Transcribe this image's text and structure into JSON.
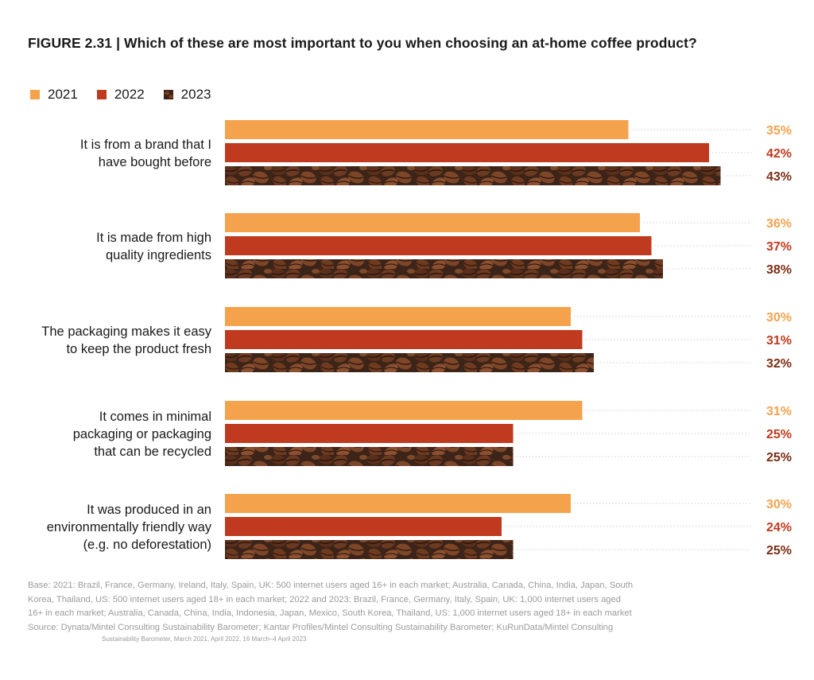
{
  "figure": {
    "title": "FIGURE 2.31 | Which of these are most important to you when choosing an at-home coffee product?"
  },
  "colors": {
    "y2021": "#f5a24c",
    "y2022": "#bf3a1e",
    "y2023_base": "#3d2418",
    "bean": "#6b3a22",
    "bean_dark": "#241109",
    "label_2023": "#7a2e14",
    "grid_dots": "#cfcfcf"
  },
  "legend": [
    {
      "label": "2021",
      "color_key": "y2021",
      "icon": "solid-swatch"
    },
    {
      "label": "2022",
      "color_key": "y2022",
      "icon": "solid-swatch"
    },
    {
      "label": "2023",
      "color_key": "y2023_base",
      "icon": "coffee-bean-swatch"
    }
  ],
  "chart_data": {
    "type": "bar",
    "orientation": "horizontal",
    "title": "Which of these are most important to you when choosing an at-home coffee product?",
    "categories": [
      [
        "It is from a brand that I",
        "have bought before"
      ],
      [
        "It is made from high",
        "quality ingredients"
      ],
      [
        "The packaging makes it easy",
        "to keep the product fresh"
      ],
      [
        "It comes in minimal",
        "packaging or packaging",
        "that can be recycled"
      ],
      [
        "It was produced in an",
        "environmentally friendly way",
        "(e.g. no deforestation)"
      ]
    ],
    "series": [
      {
        "name": "2021",
        "values": [
          35,
          36,
          30,
          31,
          30
        ],
        "labels": [
          "35%",
          "36%",
          "30%",
          "31%",
          "30%"
        ]
      },
      {
        "name": "2022",
        "values": [
          42,
          37,
          31,
          25,
          24
        ],
        "labels": [
          "42%",
          "37%",
          "31%",
          "25%",
          "24%"
        ]
      },
      {
        "name": "2023",
        "values": [
          43,
          38,
          32,
          25,
          25
        ],
        "labels": [
          "43%",
          "38%",
          "32%",
          "25%",
          "25%"
        ]
      }
    ],
    "value_unit": "%",
    "xlim": [
      0,
      50
    ],
    "grid": false,
    "legend_position": "top-left"
  },
  "source": {
    "lines": [
      "Base: 2021: Brazil, France, Germany, Ireland, Italy, Spain, UK: 500 internet users aged 16+ in each market; Australia, Canada, China, India, Japan, South",
      "Korea, Thailand, US: 500 internet users aged 18+ in each market; 2022 and 2023: Brazil, France, Germany, Italy, Spain, UK: 1,000 internet users aged",
      "16+ in each market; Australia, Canada, China, India, Indonesia, Japan, Mexico, South Korea, Thailand, US: 1,000 internet users aged 18+ in each market",
      "Source: Dynata/Mintel Consulting Sustainability Barometer; Kantar Profiles/Mintel Consulting Sustainability Barometer; KuRunData/Mintel Consulting"
    ],
    "tail": "Sustainability Barometer, March 2021, April 2022, 16 March–4 April 2023"
  }
}
